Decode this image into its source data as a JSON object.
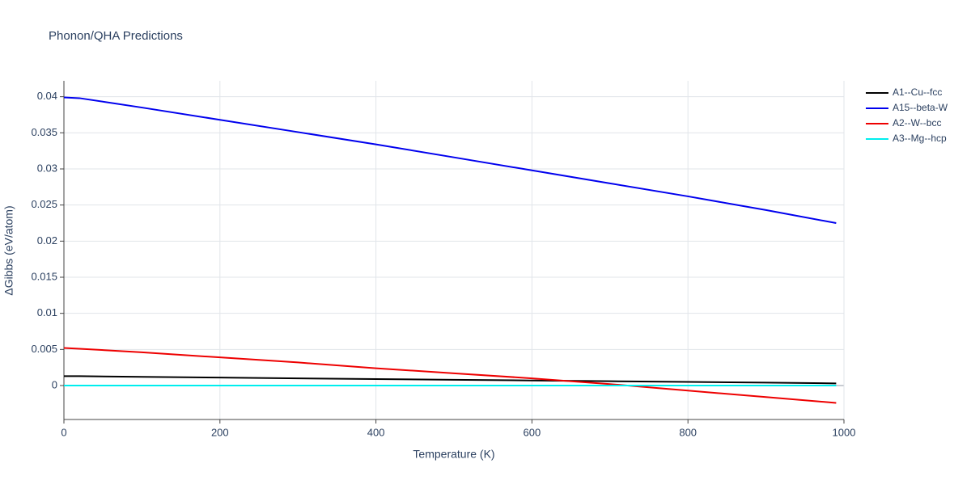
{
  "chart_data": {
    "type": "line",
    "title": "Phonon/QHA Predictions",
    "x_label": "Temperature (K)",
    "y_label": "ΔGibbs (eV/atom)",
    "x": [
      0,
      20,
      100,
      200,
      300,
      400,
      500,
      600,
      700,
      800,
      900,
      990
    ],
    "series": [
      {
        "name": "A1--Cu--fcc",
        "color": "#000000",
        "values": [
          0.0013,
          0.0013,
          0.0012,
          0.0011,
          0.001,
          0.0009,
          0.0008,
          0.0007,
          0.0006,
          0.0005,
          0.0004,
          0.0003
        ]
      },
      {
        "name": "A15--beta-W",
        "color": "#0000ee",
        "values": [
          0.0399,
          0.0398,
          0.0385,
          0.0368,
          0.0351,
          0.0334,
          0.0316,
          0.0298,
          0.028,
          0.0262,
          0.0243,
          0.0225
        ]
      },
      {
        "name": "A2--W--bcc",
        "color": "#ee0000",
        "values": [
          0.0052,
          0.0051,
          0.0046,
          0.0039,
          0.0032,
          0.0024,
          0.0017,
          0.001,
          0.0002,
          -0.0007,
          -0.0016,
          -0.0024
        ]
      },
      {
        "name": "A3--Mg--hcp",
        "color": "#00eeee",
        "values": [
          0,
          0,
          0,
          0,
          0,
          0,
          0,
          0,
          0,
          0,
          0,
          0
        ]
      }
    ],
    "xlim": [
      0,
      1000
    ],
    "xticks": [
      0,
      200,
      400,
      600,
      800,
      1000
    ],
    "ylim": [
      -0.0047,
      0.0422
    ],
    "yticks": [
      0,
      0.005,
      0.01,
      0.015,
      0.02,
      0.025,
      0.03,
      0.035,
      0.04
    ],
    "grid": true,
    "legend": "top-right"
  }
}
